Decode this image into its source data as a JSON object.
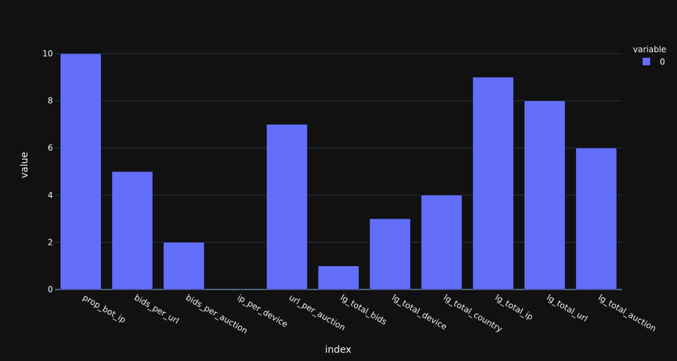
{
  "chart_data": {
    "type": "bar",
    "categories": [
      "prop_bot_ip",
      "bids_per_url",
      "bids_per_auction",
      "ip_per_device",
      "url_per_auction",
      "lg_total_bids",
      "lg_total_device",
      "lg_total_country",
      "lg_total_ip",
      "lg_total_url",
      "lg_total_auction"
    ],
    "series": [
      {
        "name": "0",
        "values": [
          10,
          5,
          2,
          0,
          7,
          1,
          3,
          4,
          9,
          8,
          6
        ],
        "color": "#636efa"
      }
    ],
    "xlabel": "index",
    "ylabel": "value",
    "ylim": [
      0,
      10
    ],
    "yticks": [
      0,
      2,
      4,
      6,
      8,
      10
    ],
    "grid": true,
    "legend": {
      "title": "variable",
      "placement": "top-right"
    },
    "colors": {
      "background": "#111111",
      "grid": "#283442",
      "text": "#f2f5fa",
      "bar": "#636efa"
    }
  }
}
